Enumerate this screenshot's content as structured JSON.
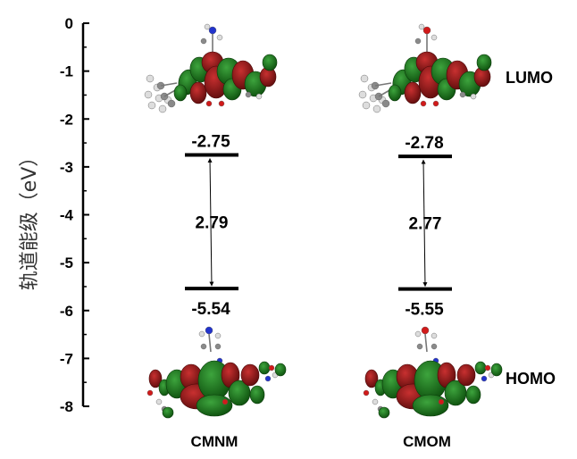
{
  "chart_data": {
    "type": "energy-level diagram",
    "ylabel": "轨道能级（eV）",
    "ylim": [
      -8,
      0
    ],
    "yticks": [
      0,
      -1,
      -2,
      -3,
      -4,
      -5,
      -6,
      -7,
      -8
    ],
    "categories": [
      "CMNM",
      "CMOM"
    ],
    "series": [
      {
        "name": "LUMO",
        "values": [
          -2.75,
          -2.78
        ],
        "labels": [
          "-2.75",
          "-2.78"
        ]
      },
      {
        "name": "HOMO",
        "values": [
          -5.54,
          -5.55
        ],
        "labels": [
          "-5.54",
          "-5.55"
        ]
      }
    ],
    "gaps": [
      "2.79",
      "2.77"
    ],
    "side_labels": {
      "top": "LUMO",
      "bottom": "HOMO"
    },
    "colors": {
      "orbital_positive": "#8b1616",
      "orbital_negative": "#1d7a1d",
      "nitrogen": "#2233cc",
      "oxygen": "#d11a1a",
      "carbon": "#8a8a8a",
      "hydrogen": "#dddddd"
    }
  }
}
